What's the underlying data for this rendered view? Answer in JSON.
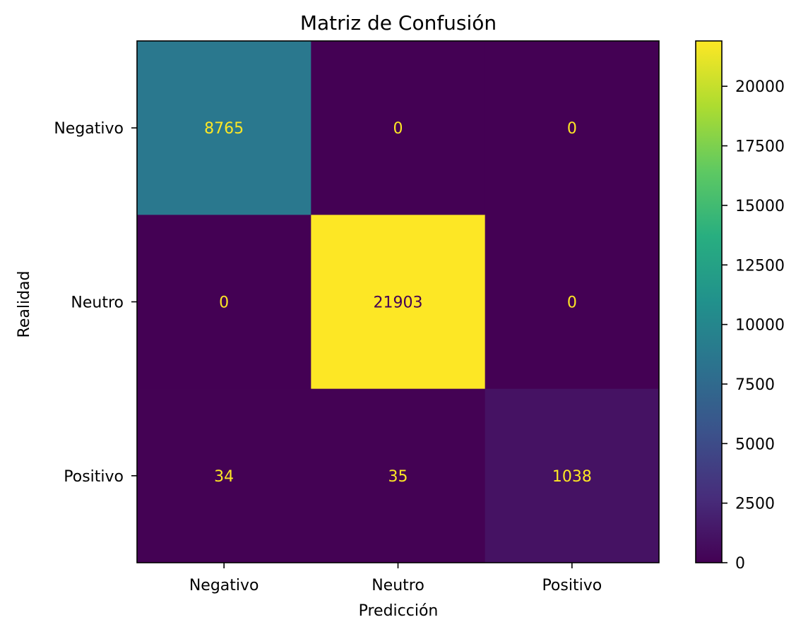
{
  "chart_data": {
    "type": "heatmap",
    "title": "Matriz de Confusión",
    "xlabel": "Predicción",
    "ylabel": "Realidad",
    "x_categories": [
      "Negativo",
      "Neutro",
      "Positivo"
    ],
    "y_categories": [
      "Negativo",
      "Neutro",
      "Positivo"
    ],
    "matrix": [
      [
        8765,
        0,
        0
      ],
      [
        0,
        21903,
        0
      ],
      [
        34,
        35,
        1038
      ]
    ],
    "colormap": "viridis",
    "colorbar": {
      "min": 0,
      "max": 21903,
      "ticks": [
        0,
        2500,
        5000,
        7500,
        10000,
        12500,
        15000,
        17500,
        20000
      ],
      "tick_labels": [
        "0",
        "2500",
        "5000",
        "7500",
        "10000",
        "12500",
        "15000",
        "17500",
        "20000"
      ]
    },
    "grid": false,
    "label_colors": {
      "on_dark": "#fde725",
      "on_light": "#440154"
    }
  }
}
